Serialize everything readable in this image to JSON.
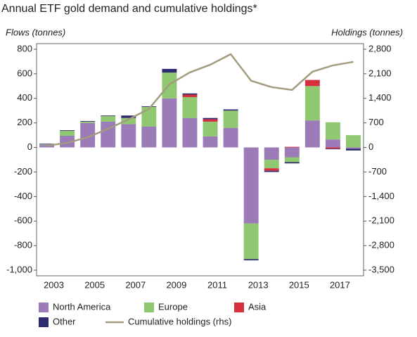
{
  "chart_data": {
    "type": "bar",
    "stacked": true,
    "title": "Annual ETF gold demand and cumulative holdings*",
    "y_label": "Flows (tonnes)",
    "y2_label": "Holdings (tonnes)",
    "categories": [
      "2003",
      null,
      "2005",
      null,
      "2007",
      null,
      "2009",
      null,
      "2011",
      null,
      "2013",
      null,
      "2015",
      null,
      "2017",
      null
    ],
    "series": [
      {
        "name": "North America",
        "color": "#9b7bb8",
        "values": [
          20,
          95,
          200,
          210,
          190,
          170,
          400,
          240,
          90,
          160,
          -620,
          -100,
          -80,
          220,
          65,
          -10
        ]
      },
      {
        "name": "Europe",
        "color": "#8fc870",
        "values": [
          5,
          40,
          10,
          45,
          50,
          160,
          210,
          170,
          120,
          140,
          -290,
          -70,
          -40,
          280,
          140,
          100
        ]
      },
      {
        "name": "Asia",
        "color": "#d6303f",
        "values": [
          0,
          0,
          0,
          0,
          0,
          0,
          0,
          20,
          20,
          0,
          0,
          -20,
          5,
          50,
          -10,
          0
        ]
      },
      {
        "name": "Other",
        "color": "#2e2a6e",
        "values": [
          5,
          5,
          5,
          5,
          20,
          5,
          30,
          10,
          10,
          10,
          -10,
          -10,
          -10,
          0,
          -5,
          -15
        ]
      },
      {
        "name": "Cumulative holdings (rhs)",
        "type": "line",
        "axis": "y2",
        "color": "#a39c7e",
        "values": [
          50,
          130,
          290,
          530,
          800,
          1100,
          1800,
          2140,
          2360,
          2660,
          1900,
          1720,
          1640,
          2160,
          2340,
          2440
        ]
      }
    ],
    "ylim": [
      -1000,
      800
    ],
    "yticks": [
      800,
      600,
      400,
      200,
      0,
      -200,
      -400,
      -600,
      -800,
      {
        "value": -1000,
        "label": "-1,000"
      }
    ],
    "y2lim": [
      -3500,
      2800
    ],
    "y2ticks": [
      {
        "value": 2800,
        "label": "2,800"
      },
      {
        "value": 2100,
        "label": "2,100"
      },
      {
        "value": 1400,
        "label": "1,400"
      },
      700,
      0,
      -700,
      {
        "value": -1400,
        "label": "-1,400"
      },
      {
        "value": -2100,
        "label": "-2,100"
      },
      {
        "value": -2800,
        "label": "-2,800"
      },
      {
        "value": -3500,
        "label": "-3,500"
      }
    ],
    "legend": "bottom",
    "grid": false
  }
}
